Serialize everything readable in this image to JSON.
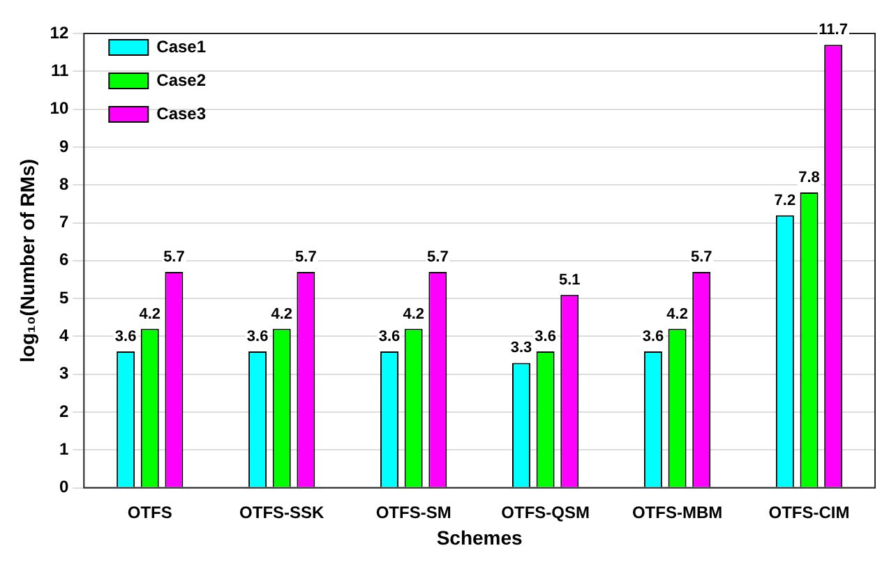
{
  "chart_data": {
    "type": "bar",
    "xlabel": "Schemes",
    "ylabel": "log₁₀(Number of RMs)",
    "categories": [
      "OTFS",
      "OTFS-SSK",
      "OTFS-SM",
      "OTFS-QSM",
      "OTFS-MBM",
      "OTFS-CIM"
    ],
    "series": [
      {
        "name": "Case1",
        "color": "#00ffff",
        "values": [
          3.6,
          3.6,
          3.6,
          3.3,
          3.6,
          7.2
        ]
      },
      {
        "name": "Case2",
        "color": "#00ff00",
        "values": [
          4.2,
          4.2,
          4.2,
          3.6,
          4.2,
          7.8
        ]
      },
      {
        "name": "Case3",
        "color": "#ff00ff",
        "values": [
          5.7,
          5.7,
          5.7,
          5.1,
          5.7,
          11.7
        ]
      }
    ],
    "ylim": [
      0,
      12
    ],
    "yticks": [
      0,
      1,
      2,
      3,
      4,
      5,
      6,
      7,
      8,
      9,
      10,
      11,
      12
    ],
    "grid": "y",
    "legend": "top left",
    "data_labels": true
  }
}
